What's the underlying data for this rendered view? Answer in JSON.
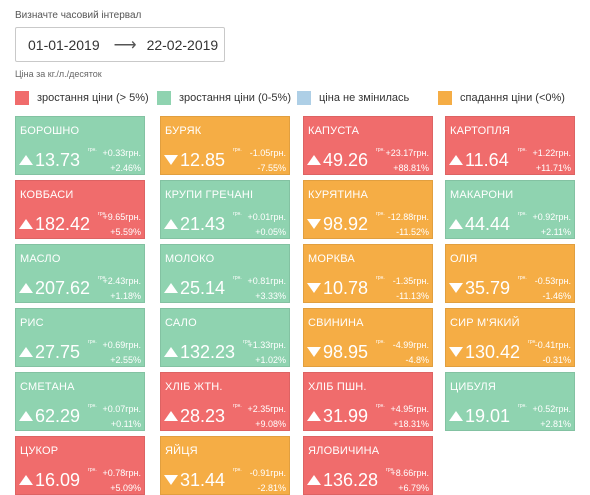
{
  "header": {
    "interval_label": "Визначте часовий інтервал",
    "date_from": "01-01-2019",
    "date_to": "22-02-2019",
    "arrow": "⟶",
    "unit_label": "Ціна за кг./л./десяток"
  },
  "colors": {
    "red": "#f06c6c",
    "green": "#8fd3b0",
    "blue": "#aecfe6",
    "orange": "#f5ad45"
  },
  "legend": [
    {
      "label": "зростання ціни (> 5%)",
      "color": "#f06c6c"
    },
    {
      "label": "зростання ціни (0-5%)",
      "color": "#8fd3b0"
    },
    {
      "label": "ціна не змінилась",
      "color": "#aecfe6"
    },
    {
      "label": "спадання ціни (<0%)",
      "color": "#f5ad45"
    }
  ],
  "unit_superscript": "грн.",
  "products": [
    {
      "name": "БОРОШНО",
      "price": "13.73",
      "change": "+0.33грн.",
      "percent": "+2.46%",
      "trend": "up",
      "status": "green"
    },
    {
      "name": "БУРЯК",
      "price": "12.85",
      "change": "-1.05грн.",
      "percent": "-7.55%",
      "trend": "down",
      "status": "orange"
    },
    {
      "name": "КАПУСТА",
      "price": "49.26",
      "change": "+23.17грн.",
      "percent": "+88.81%",
      "trend": "up",
      "status": "red"
    },
    {
      "name": "КАРТОПЛЯ",
      "price": "11.64",
      "change": "+1.22грн.",
      "percent": "+11.71%",
      "trend": "up",
      "status": "red"
    },
    {
      "name": "КОВБАСИ",
      "price": "182.42",
      "change": "+9.65грн.",
      "percent": "+5.59%",
      "trend": "up",
      "status": "red"
    },
    {
      "name": "КРУПИ ГРЕЧАНІ",
      "price": "21.43",
      "change": "+0.01грн.",
      "percent": "+0.05%",
      "trend": "up",
      "status": "green"
    },
    {
      "name": "КУРЯТИНА",
      "price": "98.92",
      "change": "-12.88грн.",
      "percent": "-11.52%",
      "trend": "down",
      "status": "orange"
    },
    {
      "name": "МАКАРОНИ",
      "price": "44.44",
      "change": "+0.92грн.",
      "percent": "+2.11%",
      "trend": "up",
      "status": "green"
    },
    {
      "name": "МАСЛО",
      "price": "207.62",
      "change": "+2.43грн.",
      "percent": "+1.18%",
      "trend": "up",
      "status": "green"
    },
    {
      "name": "МОЛОКО",
      "price": "25.14",
      "change": "+0.81грн.",
      "percent": "+3.33%",
      "trend": "up",
      "status": "green"
    },
    {
      "name": "МОРКВА",
      "price": "10.78",
      "change": "-1.35грн.",
      "percent": "-11.13%",
      "trend": "down",
      "status": "orange"
    },
    {
      "name": "ОЛІЯ",
      "price": "35.79",
      "change": "-0.53грн.",
      "percent": "-1.46%",
      "trend": "down",
      "status": "orange"
    },
    {
      "name": "РИС",
      "price": "27.75",
      "change": "+0.69грн.",
      "percent": "+2.55%",
      "trend": "up",
      "status": "green"
    },
    {
      "name": "САЛО",
      "price": "132.23",
      "change": "+1.33грн.",
      "percent": "+1.02%",
      "trend": "up",
      "status": "green"
    },
    {
      "name": "СВИНИНА",
      "price": "98.95",
      "change": "-4.99грн.",
      "percent": "-4.8%",
      "trend": "down",
      "status": "orange"
    },
    {
      "name": "СИР М'ЯКИЙ",
      "price": "130.42",
      "change": "-0.41грн.",
      "percent": "-0.31%",
      "trend": "down",
      "status": "orange"
    },
    {
      "name": "СМЕТАНА",
      "price": "62.29",
      "change": "+0.07грн.",
      "percent": "+0.11%",
      "trend": "up",
      "status": "green"
    },
    {
      "name": "ХЛІБ ЖТН.",
      "price": "28.23",
      "change": "+2.35грн.",
      "percent": "+9.08%",
      "trend": "up",
      "status": "red"
    },
    {
      "name": "ХЛІБ ПШН.",
      "price": "31.99",
      "change": "+4.95грн.",
      "percent": "+18.31%",
      "trend": "up",
      "status": "red"
    },
    {
      "name": "ЦИБУЛЯ",
      "price": "19.01",
      "change": "+0.52грн.",
      "percent": "+2.81%",
      "trend": "up",
      "status": "green"
    },
    {
      "name": "ЦУКОР",
      "price": "16.09",
      "change": "+0.78грн.",
      "percent": "+5.09%",
      "trend": "up",
      "status": "red"
    },
    {
      "name": "ЯЙЦЯ",
      "price": "31.44",
      "change": "-0.91грн.",
      "percent": "-2.81%",
      "trend": "down",
      "status": "orange"
    },
    {
      "name": "ЯЛОВИЧИНА",
      "price": "136.28",
      "change": "+8.66грн.",
      "percent": "+6.79%",
      "trend": "up",
      "status": "red"
    }
  ]
}
